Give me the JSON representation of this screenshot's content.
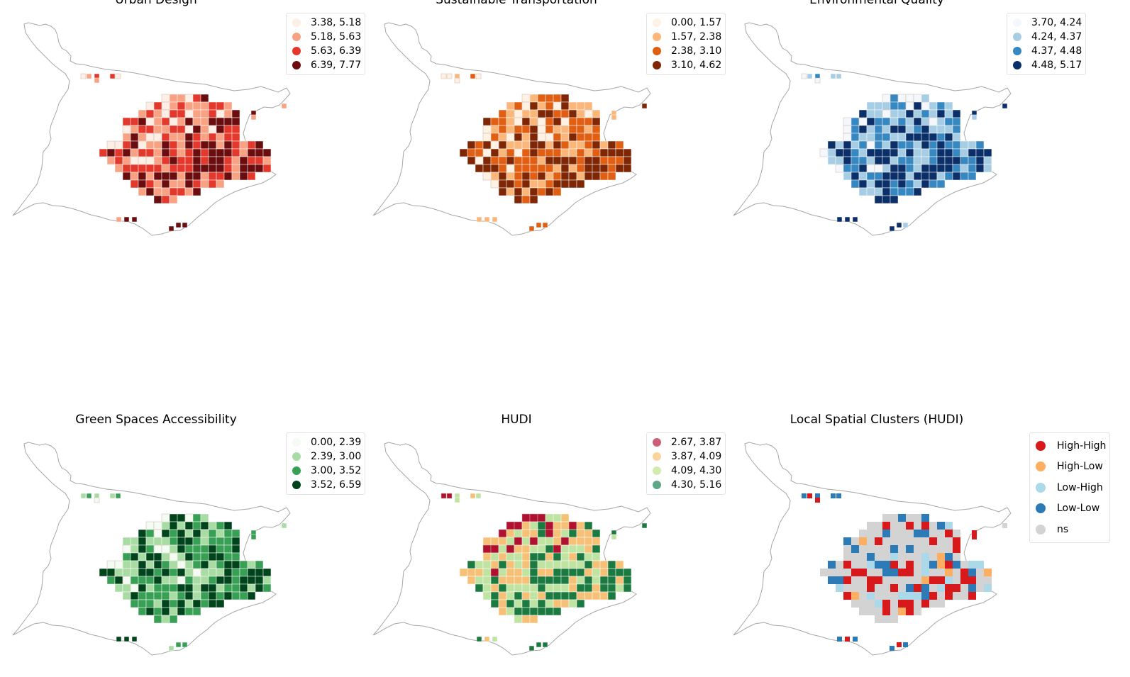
{
  "panels": [
    {
      "title": "Urban Design",
      "kind": "choropleth",
      "legend": [
        "3.38, 5.18",
        "5.18, 5.63",
        "5.63, 6.39",
        "6.39, 7.77"
      ],
      "colors": [
        "#fdeee6",
        "#f9a283",
        "#e3382c",
        "#6b0c0f"
      ],
      "seed": 11
    },
    {
      "title": "Sustainable Transportation",
      "kind": "choropleth",
      "legend": [
        "0.00, 1.57",
        "1.57, 2.38",
        "2.38, 3.10",
        "3.10, 4.62"
      ],
      "colors": [
        "#fff1e3",
        "#fbb77a",
        "#e15f13",
        "#7f2704"
      ],
      "seed": 23
    },
    {
      "title": "Environmental Quality",
      "kind": "choropleth",
      "legend": [
        "3.70, 4.24",
        "4.24, 4.37",
        "4.37, 4.48",
        "4.48, 5.17"
      ],
      "colors": [
        "#f4f8fd",
        "#a6cde3",
        "#3787c0",
        "#0b2f69"
      ],
      "seed": 37
    },
    {
      "title": "Green Spaces Accessibility",
      "kind": "choropleth",
      "legend": [
        "0.00, 2.39",
        "2.39, 3.00",
        "3.00, 3.52",
        "3.52, 6.59"
      ],
      "colors": [
        "#f4fbf2",
        "#a9dca3",
        "#38a055",
        "#00441b"
      ],
      "seed": 41
    },
    {
      "title": "HUDI",
      "kind": "choropleth",
      "legend": [
        "2.67, 3.87",
        "3.87, 4.09",
        "4.09, 4.30",
        "4.30, 5.16"
      ],
      "colors": [
        "#ca6078",
        "#fbd49c",
        "#d3ebb0",
        "#5ea786"
      ],
      "map_colors": [
        "#b21031",
        "#f6c177",
        "#bfe3a0",
        "#1b7a40"
      ],
      "seed": 53
    },
    {
      "title": "Local Spatial Clusters (HUDI)",
      "kind": "lisa",
      "legend": [
        "High-High",
        "High-Low",
        "Low-High",
        "Low-Low",
        "ns"
      ],
      "colors": [
        "#d7191c",
        "#fdae61",
        "#abd9e9",
        "#2c7bb6",
        "#d3d3d3"
      ],
      "seed": 67
    }
  ]
}
